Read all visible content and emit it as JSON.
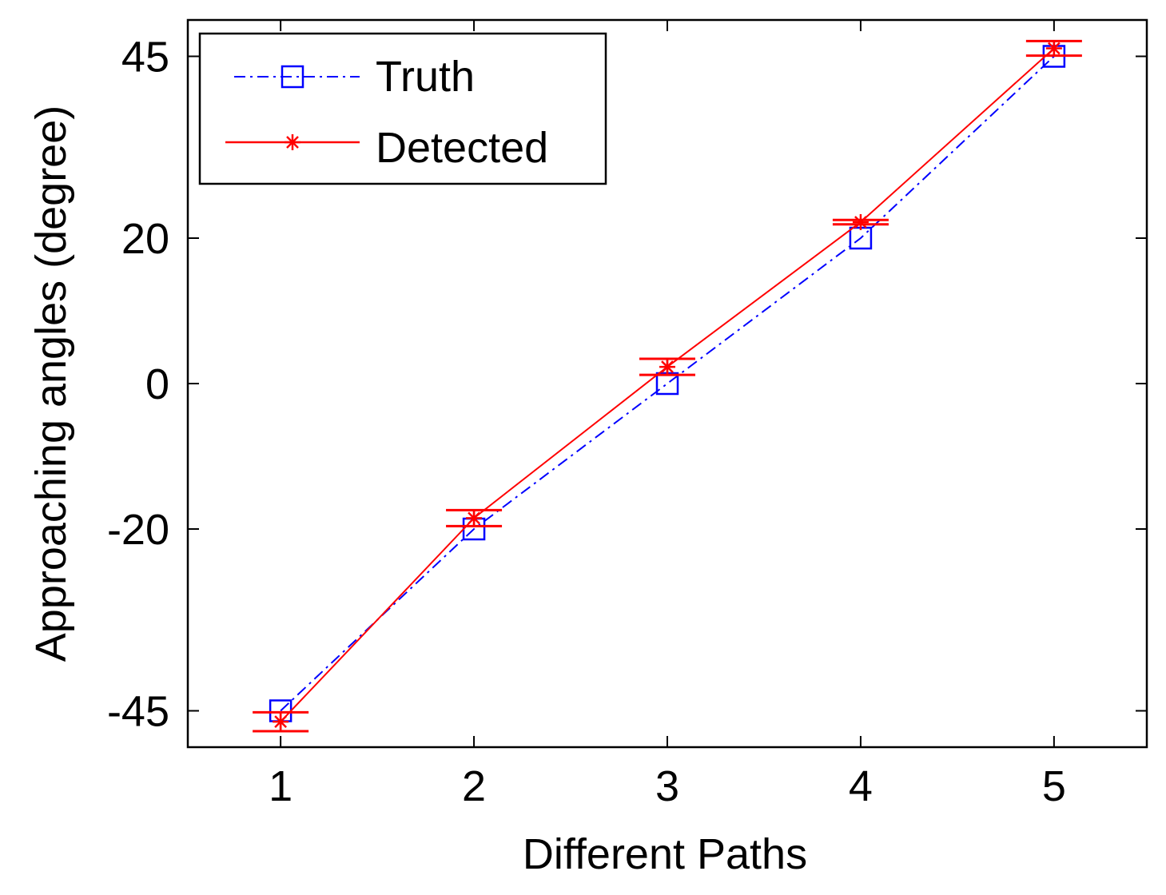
{
  "chart_data": {
    "type": "line",
    "xlabel": "Different Paths",
    "ylabel": "Approaching angles (degree)",
    "x": [
      1,
      2,
      3,
      4,
      5
    ],
    "xticks": [
      "1",
      "2",
      "3",
      "4",
      "5"
    ],
    "xlim": [
      0.52,
      5.48
    ],
    "yticks": [
      -45,
      -20,
      0,
      20,
      45
    ],
    "ytick_labels": [
      "-45",
      "-20",
      "0",
      "20",
      "45"
    ],
    "ylim": [
      -50,
      50
    ],
    "grid": false,
    "legend_position": "top-left",
    "series": [
      {
        "name": "Truth",
        "values": [
          -45,
          -20,
          0,
          20,
          45
        ],
        "color": "#0000ff",
        "line_style": "dash-dot",
        "marker": "square"
      },
      {
        "name": "Detected",
        "values": [
          -46.5,
          -18.5,
          2.3,
          22.2,
          46.1
        ],
        "error": [
          1.3,
          1.1,
          1.1,
          0.3,
          1.0
        ],
        "color": "#ff0000",
        "line_style": "solid",
        "marker": "asterisk"
      }
    ]
  }
}
